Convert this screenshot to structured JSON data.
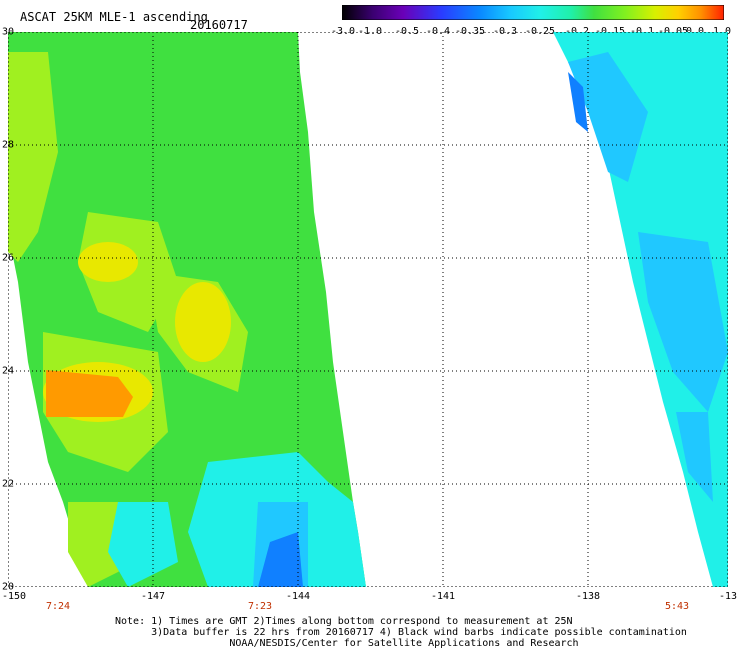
{
  "header": {
    "title": "ASCAT 25KM MLE-1 ascending",
    "date": "20160717"
  },
  "colorbar": {
    "labels": [
      "-3.0",
      "-1.0",
      "-0.5",
      "-0.4",
      "-0.35",
      "-0.3",
      "-0.25",
      "-0.2",
      "-0.15",
      "-0.1",
      "-0.05",
      "0.0",
      "1.0"
    ],
    "colors": [
      "#000000",
      "#6a00b8",
      "#2a3cff",
      "#0a88ff",
      "#18c8ff",
      "#20f0e8",
      "#20f0a8",
      "#40e040",
      "#80f020",
      "#d8f000",
      "#ffd000",
      "#ff9000",
      "#ff2000"
    ]
  },
  "axes": {
    "lat_labels": [
      "30",
      "28",
      "26",
      "24",
      "22",
      "20"
    ],
    "lon_labels": [
      "-150",
      "-147",
      "-144",
      "-141",
      "-138",
      "-13"
    ],
    "lat_range": [
      20,
      30
    ],
    "lon_range": [
      -150,
      -135
    ]
  },
  "time_labels": [
    "7:24",
    "7:23",
    "5:43"
  ],
  "note": {
    "line1": "Note: 1) Times are GMT 2)Times along bottom correspond to measurement at 25N",
    "line2": "      3)Data buffer is 22 hrs from 20160717 4) Black wind barbs indicate possible contamination",
    "line3": "                   NOAA/NESDIS/Center for Satellite Applications and Research"
  },
  "map_colors": {
    "green": "#40e040",
    "yellow_green": "#a0f020",
    "yellow": "#e8e800",
    "orange": "#ff9a00",
    "cyan": "#20f0e8",
    "light_blue": "#20c8ff",
    "blue": "#1080ff"
  }
}
